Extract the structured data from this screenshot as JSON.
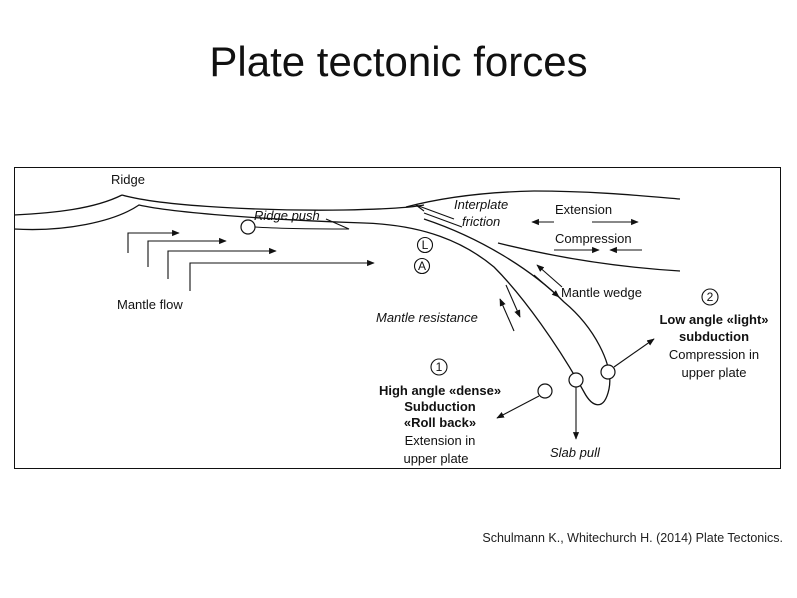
{
  "slide": {
    "title": "Plate tectonic forces",
    "citation": "Schulmann K., Whitechurch H. (2014) Plate Tectonics."
  },
  "diagram": {
    "ridge": "Ridge",
    "ridge_push": "Ridge push",
    "interplate_line1": "Interplate",
    "interplate_line2": "friction",
    "extension": "Extension",
    "compression": "Compression",
    "mantle_flow": "Mantle flow",
    "marker_l": "L",
    "marker_a": "A",
    "mantle_wedge": "Mantle wedge",
    "mantle_resistance": "Mantle resistance",
    "marker_1": "1",
    "marker_2": "2",
    "case1": [
      "High angle «dense»",
      "Subduction",
      "«Roll back»",
      "Extension in",
      "upper plate"
    ],
    "case2": [
      "Low angle «light»",
      "subduction",
      "Compression in",
      "upper plate"
    ],
    "slab_pull": "Slab pull"
  }
}
